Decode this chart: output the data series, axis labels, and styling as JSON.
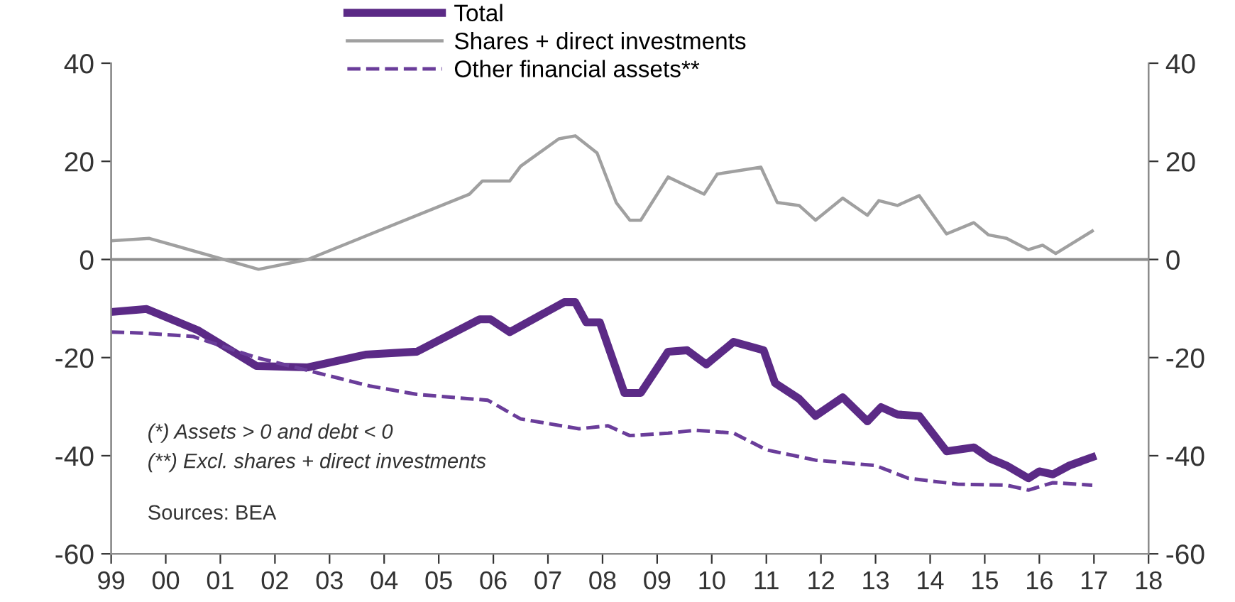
{
  "chart_data": {
    "type": "line",
    "xlim": [
      1999,
      2018
    ],
    "xticks": [
      {
        "value": 1999,
        "label": "99"
      },
      {
        "value": 2000,
        "label": "00"
      },
      {
        "value": 2001,
        "label": "01"
      },
      {
        "value": 2002,
        "label": "02"
      },
      {
        "value": 2003,
        "label": "03"
      },
      {
        "value": 2004,
        "label": "04"
      },
      {
        "value": 2005,
        "label": "05"
      },
      {
        "value": 2006,
        "label": "06"
      },
      {
        "value": 2007,
        "label": "07"
      },
      {
        "value": 2008,
        "label": "08"
      },
      {
        "value": 2009,
        "label": "09"
      },
      {
        "value": 2010,
        "label": "10"
      },
      {
        "value": 2011,
        "label": "11"
      },
      {
        "value": 2012,
        "label": "12"
      },
      {
        "value": 2013,
        "label": "13"
      },
      {
        "value": 2014,
        "label": "14"
      },
      {
        "value": 2015,
        "label": "15"
      },
      {
        "value": 2016,
        "label": "16"
      },
      {
        "value": 2017,
        "label": "17"
      },
      {
        "value": 2018,
        "label": "18"
      }
    ],
    "ylim": [
      -60,
      40
    ],
    "yticks": [
      -60,
      -40,
      -20,
      0,
      20,
      40
    ],
    "y2lim": [
      -60,
      40
    ],
    "y2ticks": [
      -60,
      -40,
      -20,
      0,
      20,
      40
    ],
    "grid": false,
    "legend": "top",
    "ref_lines": [
      {
        "axis": "y",
        "value": 0,
        "color": "#8c8c8c",
        "line_style": "solid"
      }
    ],
    "series": [
      {
        "name": "Total",
        "color": "#5b2a86",
        "line_style": "solid",
        "x": [
          1999.0,
          1999.65,
          2000.6,
          2001.66,
          2002.6,
          2003.66,
          2004.6,
          2005.75,
          2005.95,
          2006.3,
          2007.3,
          2007.5,
          2007.7,
          2007.95,
          2008.4,
          2008.7,
          2009.2,
          2009.55,
          2009.9,
          2010.4,
          2010.95,
          2011.16,
          2011.6,
          2011.9,
          2012.4,
          2012.85,
          2013.1,
          2013.4,
          2013.8,
          2014.3,
          2014.8,
          2015.1,
          2015.4,
          2015.8,
          2016.0,
          2016.25,
          2016.55,
          2016.97
        ],
        "values": [
          -10.7,
          -10.1,
          -14.5,
          -21.7,
          -22,
          -19.4,
          -18.8,
          -12.2,
          -12.2,
          -14.8,
          -8.7,
          -8.7,
          -12.8,
          -12.8,
          -27.2,
          -27.2,
          -18.8,
          -18.5,
          -21.4,
          -16.8,
          -18.5,
          -25.2,
          -28.4,
          -31.9,
          -28.1,
          -33,
          -30.1,
          -31.6,
          -31.9,
          -39.1,
          -38.3,
          -40.6,
          -42,
          -44.6,
          -43.2,
          -43.8,
          -42,
          -40.3
        ]
      },
      {
        "name": "Shares + direct investments",
        "color": "#a0a0a0",
        "line_style": "solid",
        "x": [
          1999.0,
          1999.7,
          2001.7,
          2002.6,
          2005.56,
          2005.8,
          2006.3,
          2006.5,
          2007.2,
          2007.5,
          2007.9,
          2008.25,
          2008.5,
          2008.7,
          2009.2,
          2009.86,
          2010.1,
          2010.9,
          2011.2,
          2011.6,
          2011.9,
          2012.4,
          2012.85,
          2013.06,
          2013.4,
          2013.8,
          2014.3,
          2014.8,
          2015.07,
          2015.4,
          2015.8,
          2016.06,
          2016.3,
          2016.97
        ],
        "values": [
          3.8,
          4.3,
          -2,
          0,
          13.3,
          16,
          16,
          19,
          24.6,
          25.2,
          21.7,
          11.6,
          8,
          8,
          16.8,
          13.3,
          17.4,
          18.8,
          11.6,
          11,
          8,
          12.5,
          9,
          12,
          11,
          13,
          5.2,
          7.5,
          5,
          4.3,
          2,
          2.9,
          1.2,
          5.8
        ]
      },
      {
        "name": "Other financial assets**",
        "color": "#6a3d9a",
        "line_style": "dashed",
        "x": [
          1999.0,
          1999.57,
          2000.5,
          2001.66,
          2002.7,
          2003.74,
          2004.6,
          2005.9,
          2006.5,
          2007.57,
          2008.1,
          2008.5,
          2009.2,
          2009.7,
          2010.4,
          2011.0,
          2011.9,
          2013.0,
          2013.6,
          2014.5,
          2015.4,
          2015.8,
          2016.25,
          2016.97
        ],
        "values": [
          -14.8,
          -15,
          -15.7,
          -20,
          -22.9,
          -25.8,
          -27.5,
          -28.7,
          -32.5,
          -34.5,
          -33.9,
          -35.9,
          -35.4,
          -34.8,
          -35.4,
          -38.8,
          -40.9,
          -42,
          -44.6,
          -45.8,
          -46,
          -47,
          -45.5,
          -46
        ]
      }
    ],
    "annotations": [
      "(*) Assets > 0 and debt < 0",
      "(**) Excl. shares + direct investments",
      "Sources: BEA"
    ]
  }
}
